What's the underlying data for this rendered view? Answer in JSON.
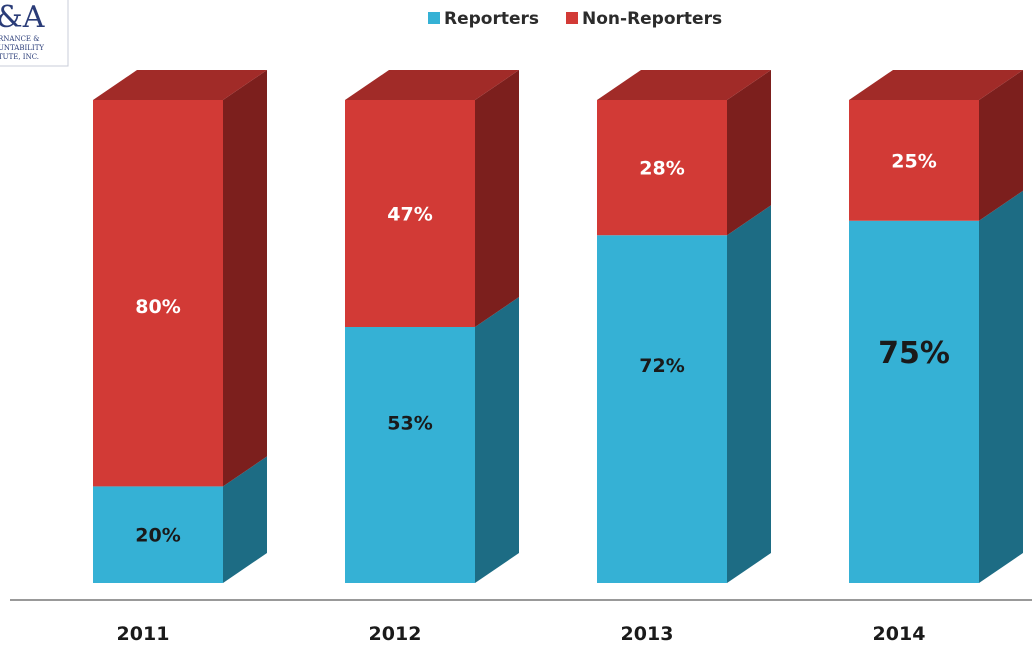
{
  "logo": {
    "mark": "&A",
    "lines": [
      "RNANCE &",
      "UNTABILITY",
      "TUTE, INC."
    ]
  },
  "colors": {
    "reporters_front": "#35b1d5",
    "reporters_side": "#1d6c84",
    "reporters_top": "#4cc3e2",
    "nonreporters_front": "#d23a36",
    "nonreporters_side": "#7c1f1d",
    "nonreporters_top": "#a12b28",
    "axis": "#999999"
  },
  "chart_data": {
    "type": "bar",
    "stacked": true,
    "style": "3d",
    "categories": [
      "2011",
      "2012",
      "2013",
      "2014"
    ],
    "series": [
      {
        "name": "Reporters",
        "values": [
          20,
          53,
          72,
          75
        ],
        "labels": [
          "20%",
          "53%",
          "72%",
          "75%"
        ]
      },
      {
        "name": "Non-Reporters",
        "values": [
          80,
          47,
          28,
          25
        ],
        "labels": [
          "80%",
          "47%",
          "28%",
          "25%"
        ]
      }
    ],
    "ylim": [
      0,
      100
    ],
    "legend_position": "top-center",
    "grid": false
  }
}
